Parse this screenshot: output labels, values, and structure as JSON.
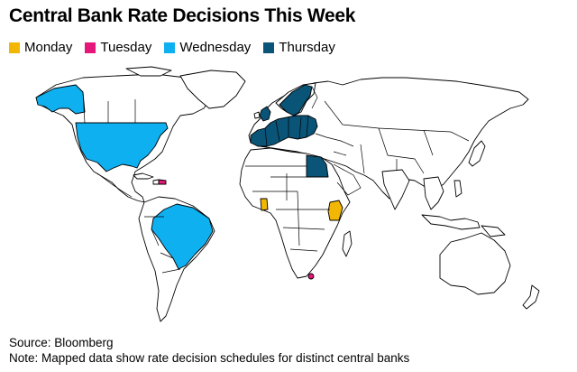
{
  "title": "Central Bank Rate Decisions This Week",
  "legend": [
    {
      "label": "Monday",
      "color": "#f2b705"
    },
    {
      "label": "Tuesday",
      "color": "#e6177a"
    },
    {
      "label": "Wednesday",
      "color": "#0fb0f0"
    },
    {
      "label": "Thursday",
      "color": "#0a5478"
    }
  ],
  "map_highlights": {
    "Monday": [
      "Ghana",
      "Kenya"
    ],
    "Tuesday": [
      "Dominican Republic",
      "Lesotho"
    ],
    "Wednesday": [
      "United States",
      "Brazil"
    ],
    "Thursday": [
      "Euro Area",
      "United Kingdom",
      "Switzerland",
      "Norway",
      "Sweden",
      "Poland",
      "Czech Republic",
      "Hungary",
      "Egypt"
    ]
  },
  "footer": {
    "source": "Source: Bloomberg",
    "note": "Note: Mapped data show rate decision schedules for distinct central banks"
  }
}
